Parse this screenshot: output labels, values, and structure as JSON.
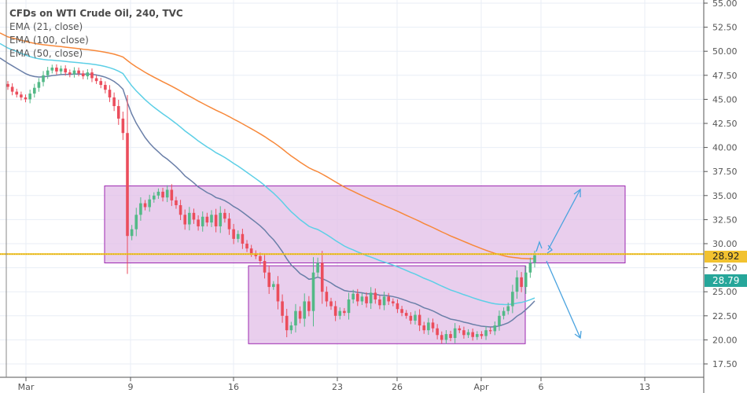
{
  "legend": {
    "title": "CFDs on WTI Crude Oil, 240, TVC",
    "ema21": "EMA (21, close)",
    "ema100": "EMA (100, close)",
    "ema50": "EMA (50, close)"
  },
  "price_badges": {
    "level": "28.92",
    "last": "28.79"
  },
  "chart_data": {
    "type": "candlestick",
    "title": "CFDs on WTI Crude Oil, 240, TVC",
    "ylim": [
      17.5,
      55.0
    ],
    "y_ticks": [
      "17.50",
      "20.00",
      "22.50",
      "25.00",
      "27.50",
      "30.00",
      "32.50",
      "35.00",
      "37.50",
      "40.00",
      "42.50",
      "45.00",
      "47.50",
      "50.00",
      "52.50",
      "55.00"
    ],
    "x_ticks": [
      "Mar",
      "9",
      "16",
      "23",
      "26",
      "Apr",
      "6",
      "13"
    ],
    "closes": [
      46.3,
      45.8,
      45.5,
      45.2,
      45.0,
      45.6,
      46.2,
      46.8,
      47.5,
      48.0,
      48.3,
      47.9,
      48.2,
      47.8,
      47.6,
      48.0,
      47.7,
      47.4,
      47.8,
      47.2,
      46.9,
      46.5,
      46.0,
      45.2,
      44.3,
      43.0,
      41.5,
      30.8,
      31.5,
      33.0,
      34.2,
      33.8,
      34.6,
      35.0,
      35.4,
      34.8,
      35.6,
      34.5,
      34.0,
      33.0,
      32.0,
      33.2,
      32.5,
      31.8,
      32.8,
      32.2,
      33.0,
      31.8,
      33.2,
      32.6,
      31.5,
      30.5,
      31.0,
      30.0,
      29.5,
      29.0,
      28.7,
      28.2,
      27.0,
      25.5,
      25.8,
      24.0,
      22.5,
      21.0,
      21.5,
      23.0,
      22.2,
      24.0,
      23.0,
      27.0,
      28.0,
      25.0,
      24.0,
      23.5,
      22.5,
      23.0,
      22.8,
      24.2,
      24.8,
      24.0,
      24.5,
      23.8,
      24.9,
      24.2,
      23.6,
      24.5,
      24.0,
      23.8,
      23.2,
      22.8,
      22.5,
      22.0,
      22.6,
      21.5,
      21.0,
      21.8,
      21.2,
      20.5,
      20.0,
      20.6,
      20.2,
      21.2,
      21.0,
      20.5,
      20.8,
      20.3,
      20.6,
      20.4,
      21.0,
      20.9,
      21.5,
      22.5,
      23.0,
      23.5,
      25.0,
      26.5,
      25.5,
      27.0,
      28.0,
      28.79
    ],
    "first_open": 46.6,
    "series": [
      {
        "name": "EMA (21, close)",
        "period": 21,
        "seed": 49.0,
        "color": "#6a7fa8"
      },
      {
        "name": "EMA (50, close)",
        "period": 50,
        "seed": 50.5,
        "color": "#5ccfe6"
      },
      {
        "name": "EMA (100, close)",
        "period": 100,
        "seed": 51.6,
        "color": "#f7883a"
      }
    ],
    "horizontal_line": {
      "value": 28.92,
      "color": "#f0c020"
    },
    "zones": [
      {
        "name": "upper-range",
        "from_date": "Mar 7",
        "to_date": "Apr 11",
        "top": 36.0,
        "bottom": 28.0
      },
      {
        "name": "lower-range",
        "from_date": "Mar 18",
        "to_date": "Apr 4",
        "top": 27.7,
        "bottom": 19.6
      }
    ],
    "colors": {
      "up": "#53b987",
      "down": "#eb4d5c",
      "zone_fill": "#e1bee7",
      "zone_border": "#9c27b0",
      "arrow": "#4aa3df",
      "last_badge": "#26a69a",
      "level_badge": "#f2c230"
    }
  }
}
